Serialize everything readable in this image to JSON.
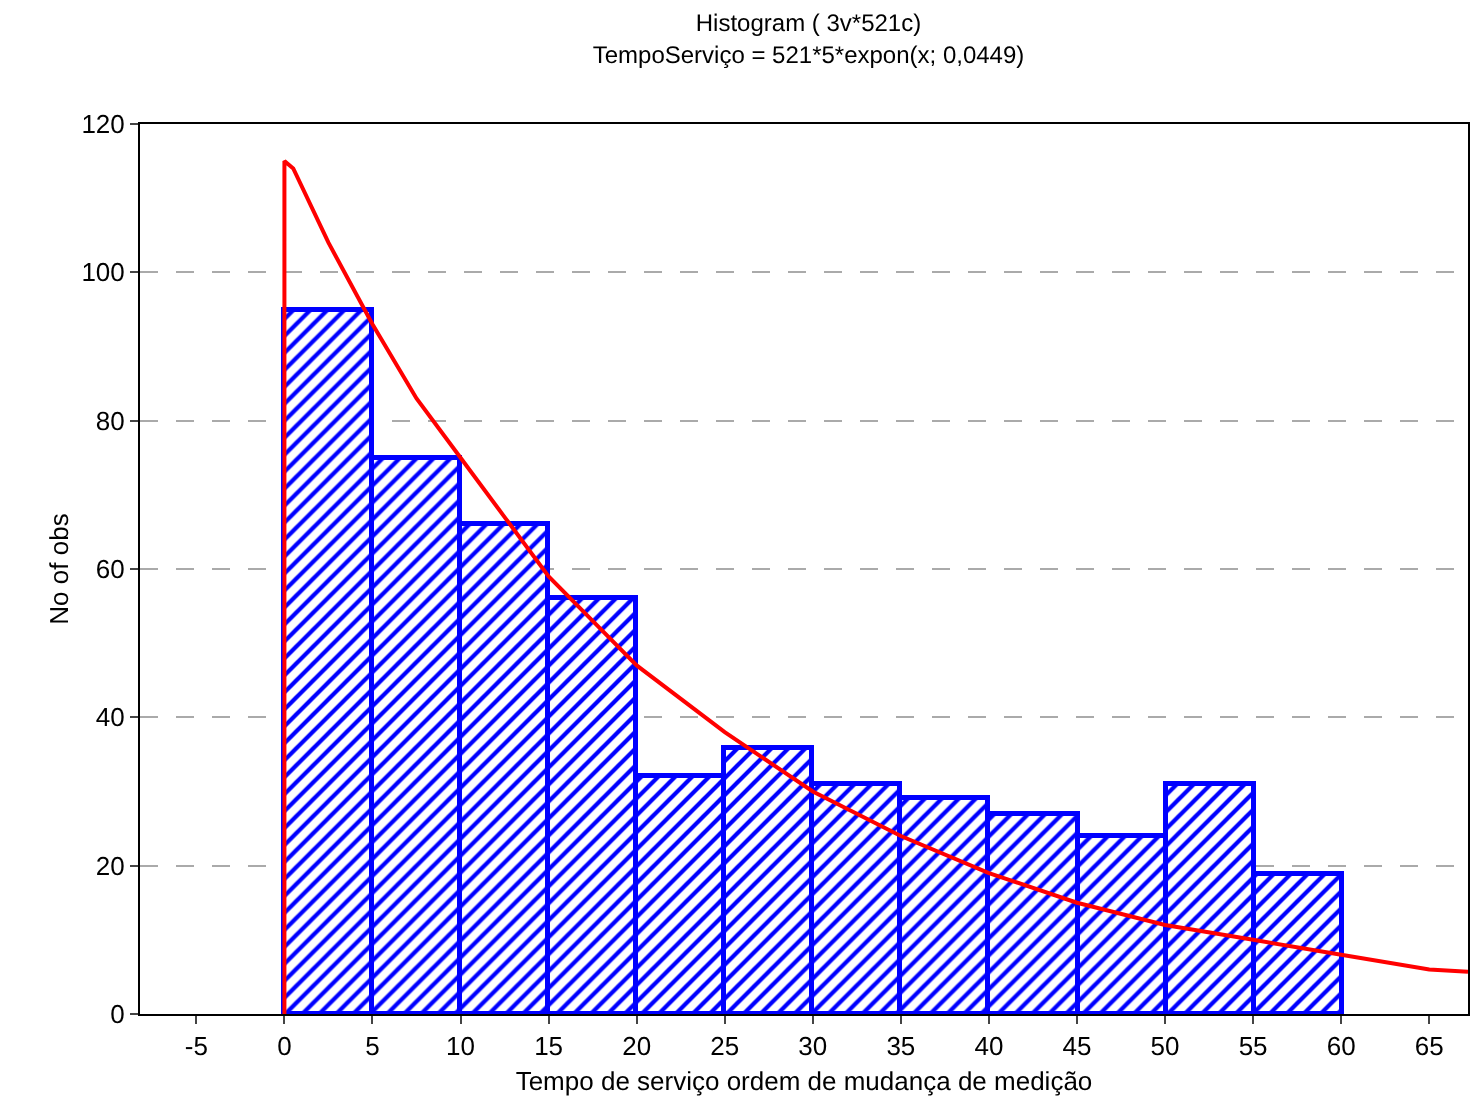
{
  "chart_data": {
    "type": "histogram",
    "title": "Histogram ( 3v*521c)",
    "subtitle": "TempoServiço = 521*5*expon(x; 0,0449)",
    "xlabel": "Tempo de serviço ordem de mudança de medição",
    "ylabel": "No of obs",
    "bins": [
      0,
      5,
      10,
      15,
      20,
      25,
      30,
      35,
      40,
      45,
      50,
      55,
      60
    ],
    "series": [
      {
        "type": "histogram",
        "color": "#0000ff",
        "values": [
          95,
          75,
          66,
          56,
          32,
          36,
          31,
          29,
          27,
          24,
          31,
          19
        ]
      },
      {
        "type": "line",
        "color": "#ff0000",
        "x": [
          0,
          0,
          0.5,
          2.5,
          5,
          7.5,
          10,
          12.5,
          15,
          17.5,
          20,
          25,
          30,
          35,
          40,
          45,
          50,
          55,
          60,
          65,
          67.2
        ],
        "values": [
          0,
          115,
          114,
          104,
          93,
          83,
          75,
          67,
          59,
          53,
          47,
          38,
          30,
          24,
          19,
          15,
          12,
          10,
          8,
          6,
          5.7
        ]
      }
    ],
    "xlim": [
      -8.2,
      67.2
    ],
    "ylim": [
      0,
      120
    ],
    "xticks": [
      -5,
      0,
      5,
      10,
      15,
      20,
      25,
      30,
      35,
      40,
      45,
      50,
      55,
      60,
      65
    ],
    "yticks": [
      0,
      20,
      40,
      60,
      80,
      100,
      120
    ],
    "grid": "y",
    "line_style": "solid",
    "marker": "none"
  }
}
